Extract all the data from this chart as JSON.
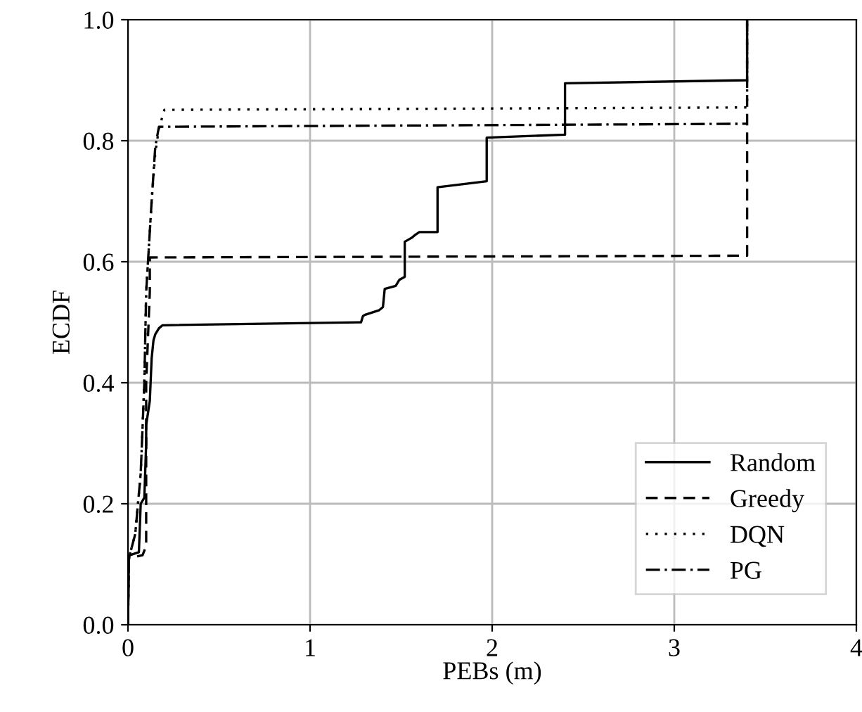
{
  "chart_data": {
    "type": "line",
    "xlabel": "PEBs (m)",
    "ylabel": "ECDF",
    "xlim": [
      0,
      4
    ],
    "ylim": [
      0,
      1
    ],
    "xticks": [
      0,
      1,
      2,
      3,
      4
    ],
    "yticks": [
      {
        "value": 0,
        "label": "0.0"
      },
      {
        "value": 0.2,
        "label": "0.2"
      },
      {
        "value": 0.4,
        "label": "0.4"
      },
      {
        "value": 0.6,
        "label": "0.6"
      },
      {
        "value": 0.8,
        "label": "0.8"
      },
      {
        "value": 1,
        "label": "1.0"
      }
    ],
    "grid": true,
    "legend": "bottom right",
    "series": [
      {
        "name": "Random",
        "color": "#000000",
        "line_style": "solid",
        "x": [
          0,
          0.005,
          0.01,
          0.06,
          0.07,
          0.09,
          0.1,
          0.1,
          0.12,
          0.13,
          0.14,
          0.15,
          0.17,
          0.19,
          1.28,
          1.29,
          1.3,
          1.38,
          1.4,
          1.41,
          1.47,
          1.49,
          1.52,
          1.52,
          1.56,
          1.58,
          1.6,
          1.7,
          1.7,
          1.97,
          1.97,
          2.4,
          2.4,
          3.4,
          3.4
        ],
        "values": [
          0,
          0.11,
          0.115,
          0.12,
          0.2,
          0.21,
          0.3,
          0.33,
          0.37,
          0.44,
          0.47,
          0.48,
          0.49,
          0.495,
          0.5,
          0.51,
          0.512,
          0.52,
          0.525,
          0.555,
          0.56,
          0.57,
          0.575,
          0.633,
          0.64,
          0.645,
          0.649,
          0.649,
          0.723,
          0.733,
          0.805,
          0.81,
          0.895,
          0.9,
          1.0
        ]
      },
      {
        "name": "Greedy",
        "color": "#000000",
        "line_style": "dashed",
        "x": [
          0,
          0.005,
          0.08,
          0.1,
          0.1,
          0.12,
          0.12,
          3.4,
          3.4
        ],
        "values": [
          0,
          0.11,
          0.115,
          0.13,
          0.4,
          0.55,
          0.607,
          0.61,
          1.0
        ]
      },
      {
        "name": "DQN",
        "color": "#000000",
        "line_style": "dotted",
        "x": [
          0,
          0.005,
          0.04,
          0.07,
          0.09,
          0.1,
          0.13,
          0.15,
          0.17,
          0.2,
          3.4,
          3.4
        ],
        "values": [
          0,
          0.11,
          0.15,
          0.25,
          0.4,
          0.55,
          0.7,
          0.78,
          0.82,
          0.851,
          0.855,
          1.0
        ]
      },
      {
        "name": "PG",
        "color": "#000000",
        "line_style": "dashdot",
        "x": [
          0,
          0.005,
          0.04,
          0.07,
          0.09,
          0.1,
          0.13,
          0.15,
          0.17,
          3.4
        ],
        "values": [
          0,
          0.11,
          0.15,
          0.25,
          0.4,
          0.55,
          0.7,
          0.79,
          0.823,
          0.828
        ]
      }
    ]
  }
}
